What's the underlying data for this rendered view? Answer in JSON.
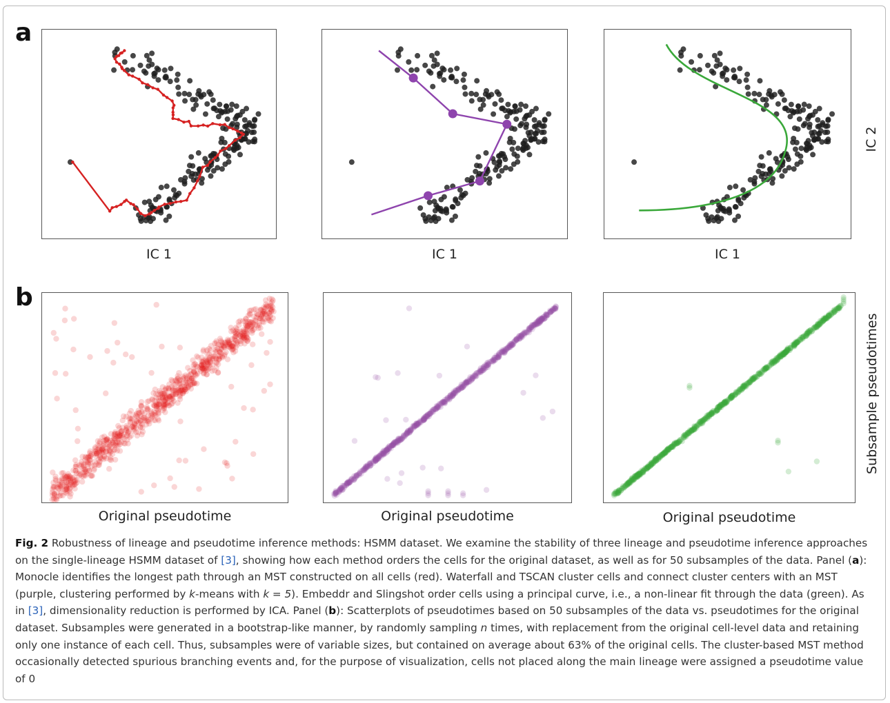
{
  "panel_a": {
    "letter": "a",
    "x_label": "IC 1",
    "y_label": "IC 2",
    "colors": {
      "points": "#1f1f1f",
      "monocle": "#d62222",
      "tscan": "#8e44ad",
      "slingshot": "#3aa83a"
    }
  },
  "panel_b": {
    "letter": "b",
    "x_label": "Original pseudotime",
    "y_label": "Subsample pseudotimes",
    "colors": {
      "monocle": "#e31a1c",
      "tscan": "#984ea3",
      "slingshot": "#3aa83a"
    }
  },
  "caption": {
    "fig_label": "Fig. 2",
    "t1": " Robustness of lineage and pseudotime inference methods: HSMM dataset. We examine the stability of three lineage and pseudotime inference approaches on the single-lineage HSMM dataset of ",
    "ref1": "[3]",
    "t2": ", showing how each method orders the cells for the original dataset, as well as for 50 subsamples of the data. Panel (",
    "panel_a": "a",
    "t3": "): Monocle identifies the longest path through an MST constructed on all cells (red). Waterfall and TSCAN cluster cells and connect cluster centers with an MST (purple, clustering performed by ",
    "k_italic": "k",
    "t4": "-means with ",
    "k_eq": "k = 5",
    "t5": "). Embeddr and Slingshot order cells using a principal curve, i.e., a non-linear fit through the data (green). As in ",
    "ref2": "[3]",
    "t6": ", dimensionality reduction is performed by ICA. Panel (",
    "panel_b": "b",
    "t7": "): Scatterplots of pseudotimes based on 50 subsamples of the data vs. pseudotimes for the original dataset. Subsamples were generated in a bootstrap-like manner, by randomly sampling ",
    "n_italic": "n",
    "t8": " times, with replacement from the original cell-level data and retaining only one instance of each cell. Thus, subsamples were of variable sizes, but contained on average about 63% of the original cells. The cluster-based MST method occasionally detected spurious branching events and, for the purpose of visualization, cells not placed along the main lineage were assigned a pseudotime value of 0"
  },
  "chart_data": [
    {
      "type": "scatter",
      "panel": "a",
      "method": "Monocle",
      "xlabel": "IC 1",
      "ylabel": "",
      "overlay": "MST longest path",
      "line_color": "#d62222"
    },
    {
      "type": "scatter",
      "panel": "a",
      "method": "Waterfall / TSCAN",
      "xlabel": "IC 1",
      "ylabel": "",
      "overlay": "MST on 5 cluster centers",
      "line_color": "#8e44ad"
    },
    {
      "type": "scatter",
      "panel": "a",
      "method": "Embeddr / Slingshot",
      "xlabel": "IC 1",
      "ylabel": "IC 2",
      "overlay": "principal curve",
      "line_color": "#3aa83a"
    },
    {
      "type": "scatter",
      "panel": "b",
      "method": "Monocle",
      "xlabel": "Original pseudotime",
      "ylabel": "",
      "color": "#e31a1c"
    },
    {
      "type": "scatter",
      "panel": "b",
      "method": "Waterfall / TSCAN",
      "xlabel": "Original pseudotime",
      "ylabel": "",
      "color": "#984ea3"
    },
    {
      "type": "scatter",
      "panel": "b",
      "method": "Embeddr / Slingshot",
      "xlabel": "Original pseudotime",
      "ylabel": "Subsample pseudotimes",
      "color": "#3aa83a"
    }
  ]
}
